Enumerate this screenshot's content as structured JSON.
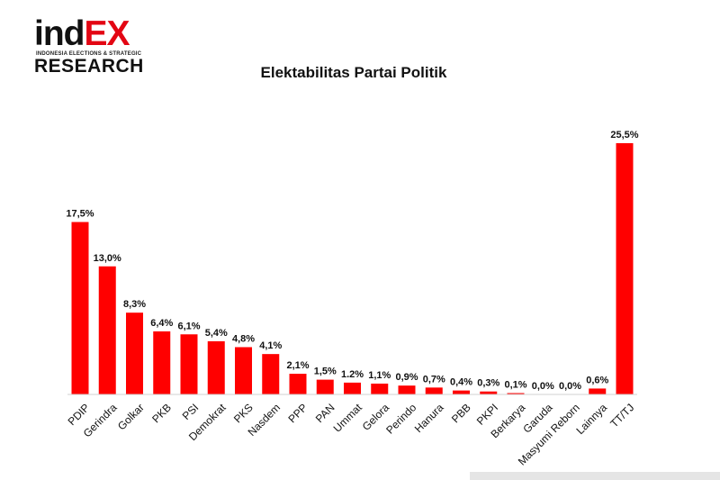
{
  "logo": {
    "ind": "ind",
    "ex": "EX",
    "tagline": "INDONESIA ELECTIONS & STRATEGIC",
    "research": "RESEARCH"
  },
  "chart_data": {
    "type": "bar",
    "title": "Elektabilitas Partai Politik",
    "categories": [
      "PDIP",
      "Gerindra",
      "Golkar",
      "PKB",
      "PSI",
      "Demokrat",
      "PKS",
      "Nasdem",
      "PPP",
      "PAN",
      "Ummat",
      "Gelora",
      "Perindo",
      "Hanura",
      "PBB",
      "PKPI",
      "Berkarya",
      "Garuda",
      "Masyumi Reborn",
      "Lainnya",
      "TT/TJ"
    ],
    "values": [
      17.5,
      13.0,
      8.3,
      6.4,
      6.1,
      5.4,
      4.8,
      4.1,
      2.1,
      1.5,
      1.2,
      1.1,
      0.9,
      0.7,
      0.4,
      0.3,
      0.1,
      0.0,
      0.0,
      0.6,
      25.5
    ],
    "data_labels": [
      "17,5%",
      "13,0%",
      "8,3%",
      "6,4%",
      "6,1%",
      "5,4%",
      "4,8%",
      "4,1%",
      "2,1%",
      "1,5%",
      "1.2%",
      "1,1%",
      "0,9%",
      "0,7%",
      "0,4%",
      "0,3%",
      "0,1%",
      "0,0%",
      "0,0%",
      "0,6%",
      "25,5%"
    ],
    "xlabel": "",
    "ylabel": "",
    "ylim": [
      0,
      25.5
    ],
    "grid": false,
    "bar_color": "#ff0000"
  }
}
